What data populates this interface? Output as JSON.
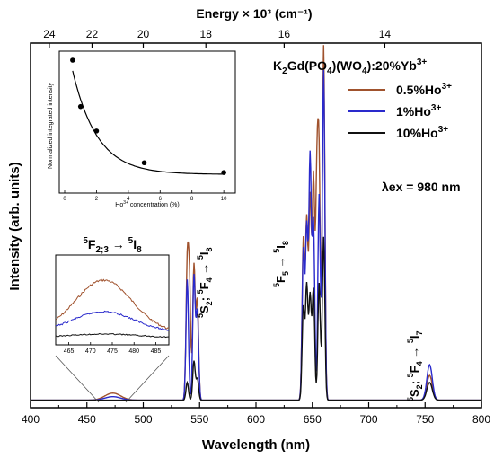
{
  "chart_data": {
    "type": "line",
    "xlabel": "Wavelength (nm)",
    "ylabel": "Intensity (arb. units)",
    "top_axis_label": "Energy × 10³ (cm⁻¹)",
    "xlim": [
      400,
      800
    ],
    "x_ticks": [
      "400",
      "450",
      "500",
      "550",
      "600",
      "650",
      "700",
      "750",
      "800"
    ],
    "top_ticks": [
      {
        "energy": 24,
        "label": "24"
      },
      {
        "energy": 22,
        "label": "22"
      },
      {
        "energy": 20,
        "label": "20"
      },
      {
        "energy": 18,
        "label": "18"
      },
      {
        "energy": 16,
        "label": "16"
      },
      {
        "energy": 14,
        "label": "14"
      }
    ],
    "legend": {
      "title": "K2Gd(PO4)(WO4):20%Yb3+",
      "position": "top-right",
      "entries": [
        {
          "name": "0.5%Ho3+",
          "color": "#A0522D"
        },
        {
          "name": "1%Ho3+",
          "color": "#2A2ACC"
        },
        {
          "name": "10%Ho3+",
          "color": "#111111"
        }
      ]
    },
    "excitation": "λex = 980 nm",
    "annotations": [
      "5F2;3 → 5I8",
      "5S2; 5F4 → 5I8",
      "5F5 → 5I8",
      "5S2; 5F4 → 5I7"
    ],
    "series": [
      {
        "name": "0.5%Ho3+",
        "color": "#A0522D",
        "peaks": [
          {
            "x": 473,
            "y": 0.02
          },
          {
            "x": 539,
            "y": 0.36
          },
          {
            "x": 541,
            "y": 0.31
          },
          {
            "x": 545,
            "y": 0.38
          },
          {
            "x": 548,
            "y": 0.28
          },
          {
            "x": 642,
            "y": 0.45
          },
          {
            "x": 645,
            "y": 0.5
          },
          {
            "x": 648,
            "y": 0.56
          },
          {
            "x": 651,
            "y": 0.62
          },
          {
            "x": 654,
            "y": 0.58
          },
          {
            "x": 656,
            "y": 0.62
          },
          {
            "x": 660,
            "y": 1.0
          },
          {
            "x": 754,
            "y": 0.07
          }
        ]
      },
      {
        "name": "1%Ho3+",
        "color": "#2A2ACC",
        "peaks": [
          {
            "x": 473,
            "y": 0.01
          },
          {
            "x": 539,
            "y": 0.34
          },
          {
            "x": 545,
            "y": 0.35
          },
          {
            "x": 548,
            "y": 0.25
          },
          {
            "x": 642,
            "y": 0.42
          },
          {
            "x": 645,
            "y": 0.48
          },
          {
            "x": 648,
            "y": 0.68
          },
          {
            "x": 651,
            "y": 0.5
          },
          {
            "x": 656,
            "y": 0.58
          },
          {
            "x": 660,
            "y": 0.93
          },
          {
            "x": 754,
            "y": 0.1
          }
        ]
      },
      {
        "name": "10%Ho3+",
        "color": "#111111",
        "peaks": [
          {
            "x": 539,
            "y": 0.05
          },
          {
            "x": 545,
            "y": 0.11
          },
          {
            "x": 548,
            "y": 0.06
          },
          {
            "x": 642,
            "y": 0.26
          },
          {
            "x": 645,
            "y": 0.32
          },
          {
            "x": 648,
            "y": 0.29
          },
          {
            "x": 651,
            "y": 0.31
          },
          {
            "x": 656,
            "y": 0.33
          },
          {
            "x": 660,
            "y": 0.46
          },
          {
            "x": 754,
            "y": 0.05
          }
        ]
      }
    ],
    "inset_main": {
      "type": "scatter",
      "xlabel": "Ho3+ concentration (%)",
      "ylabel": "Normalized integrated intensity",
      "xlim": [
        0,
        10.5
      ],
      "x_ticks": [
        0,
        2,
        4,
        6,
        8,
        10
      ],
      "points": [
        {
          "x": 0.5,
          "y": 1.0
        },
        {
          "x": 1,
          "y": 0.62
        },
        {
          "x": 2,
          "y": 0.42
        },
        {
          "x": 5,
          "y": 0.16
        },
        {
          "x": 10,
          "y": 0.08
        }
      ]
    },
    "inset_zoom": {
      "title": "5F2;3 → 5I8",
      "xlim": [
        462,
        488
      ],
      "x_ticks": [
        465,
        470,
        475,
        480,
        485
      ],
      "series": [
        {
          "name": "0.5%Ho3+",
          "color": "#A0522D",
          "peak_x": 473
        },
        {
          "name": "1%Ho3+",
          "color": "#2A2ACC",
          "peak_x": 473
        },
        {
          "name": "10%Ho3+",
          "color": "#111111",
          "peak_x": 473
        }
      ]
    }
  }
}
